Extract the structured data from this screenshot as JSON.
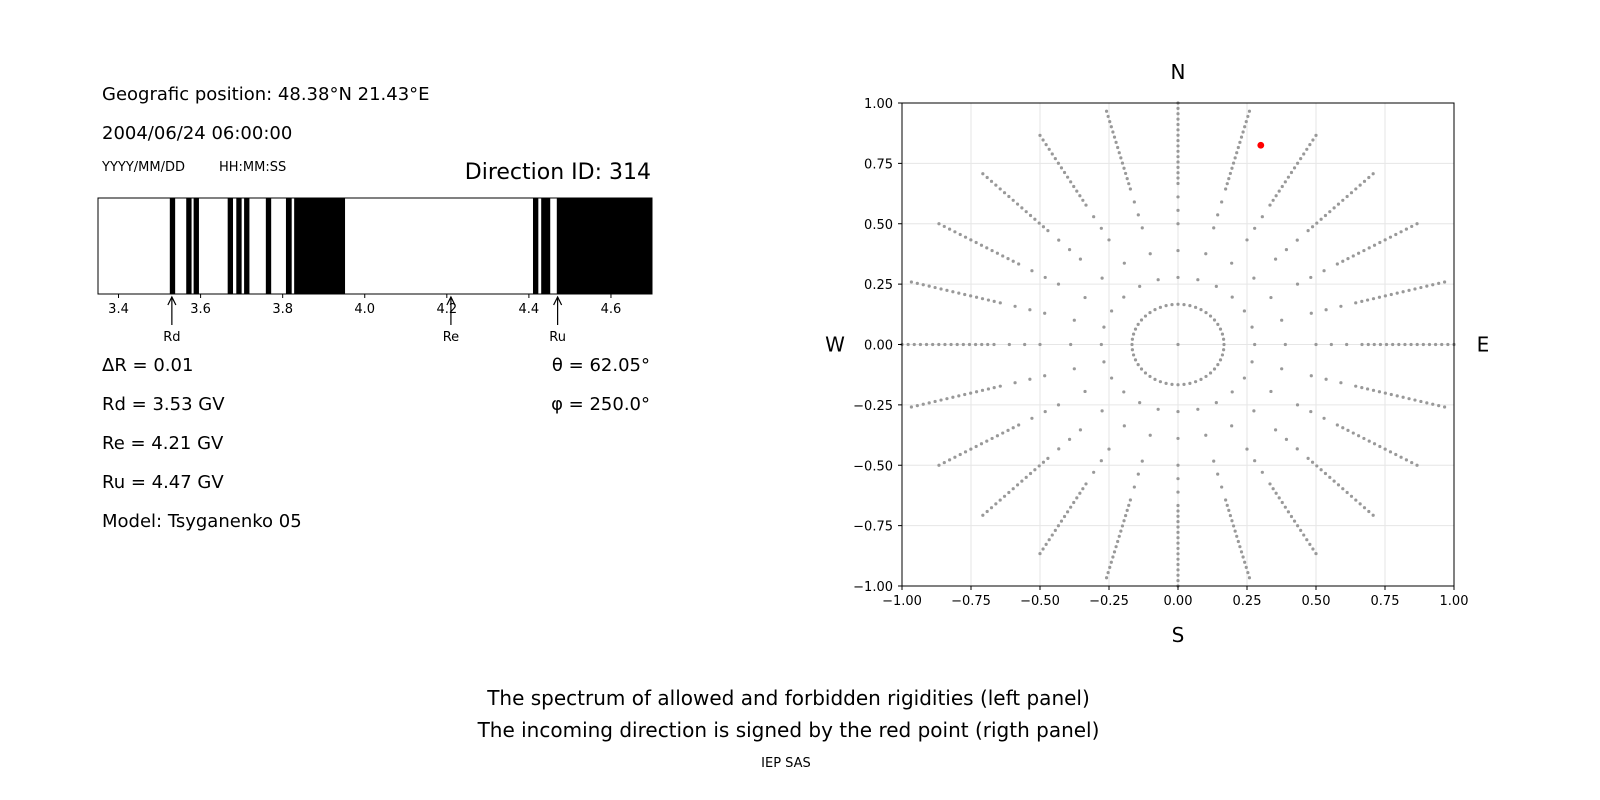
{
  "left_panel": {
    "position_text": "Geografic position: 48.38°N 21.43°E",
    "datetime_text": "2004/06/24 06:00:00",
    "date_format_label": "YYYY/MM/DD",
    "time_format_label": "HH:MM:SS",
    "direction_label": "Direction ID: 314",
    "delta_r": "ΔR = 0.01",
    "rd": "Rd = 3.53 GV",
    "re": "Re = 4.21 GV",
    "ru": "Ru = 4.47 GV",
    "model": "Model: Tsyganenko 05",
    "theta": "θ = 62.05°",
    "phi": "φ = 250.0°"
  },
  "footer": {
    "caption_line1": "The spectrum of allowed and forbidden rigidities (left panel)",
    "caption_line2": "The incoming direction is signed by the red point (rigth panel)",
    "credit": "IEP SAS"
  },
  "chart_data": [
    {
      "type": "bar",
      "xlim": [
        3.35,
        4.7
      ],
      "x_ticks": [
        3.4,
        3.6,
        3.8,
        4.0,
        4.2,
        4.4,
        4.6
      ],
      "x_tick_labels": [
        "3.4",
        "3.6",
        "3.8",
        "4.0",
        "4.2",
        "4.4",
        "4.6"
      ],
      "forbidden_intervals": [
        [
          3.525,
          3.538
        ],
        [
          3.565,
          3.578
        ],
        [
          3.583,
          3.596
        ],
        [
          3.666,
          3.679
        ],
        [
          3.687,
          3.7
        ],
        [
          3.706,
          3.719
        ],
        [
          3.759,
          3.772
        ],
        [
          3.808,
          3.822
        ],
        [
          3.828,
          3.952
        ],
        [
          4.41,
          4.423
        ],
        [
          4.43,
          4.452
        ],
        [
          4.468,
          4.7
        ]
      ],
      "markers": [
        {
          "label": "Rd",
          "value": 3.53
        },
        {
          "label": "Re",
          "value": 4.21
        },
        {
          "label": "Ru",
          "value": 4.47
        }
      ],
      "colors": {
        "forbidden": "#000000",
        "allowed": "#ffffff"
      }
    },
    {
      "type": "scatter",
      "xlim": [
        -1,
        1
      ],
      "ylim": [
        -1,
        1
      ],
      "x_ticks": [
        -1.0,
        -0.75,
        -0.5,
        -0.25,
        0.0,
        0.25,
        0.5,
        0.75,
        1.0
      ],
      "y_ticks": [
        -1.0,
        -0.75,
        -0.5,
        -0.25,
        0.0,
        0.25,
        0.5,
        0.75,
        1.0
      ],
      "x_tick_labels": [
        "−1.00",
        "−0.75",
        "−0.50",
        "−0.25",
        "0.00",
        "0.25",
        "0.50",
        "0.75",
        "1.00"
      ],
      "y_tick_labels": [
        "−1.00",
        "−0.75",
        "−0.50",
        "−0.25",
        "0.00",
        "0.25",
        "0.50",
        "0.75",
        "1.00"
      ],
      "grid": true,
      "compass": {
        "north": "N",
        "south": "S",
        "west": "W",
        "east": "E"
      },
      "direction_grid": {
        "zenith_angles_deg": [
          0,
          15,
          25,
          35,
          45,
          50,
          55,
          60,
          62.05,
          64,
          66,
          68,
          70,
          72,
          74,
          76,
          78,
          80,
          82,
          84,
          86,
          88,
          90
        ],
        "ring_count_15deg": 24,
        "azimuth_step_deg": 15,
        "azimuth_step_deg_ring15": 7.5,
        "color": "#999999"
      },
      "highlight_point": {
        "x": 0.3,
        "y": 0.825,
        "color": "#ff0000"
      }
    }
  ]
}
